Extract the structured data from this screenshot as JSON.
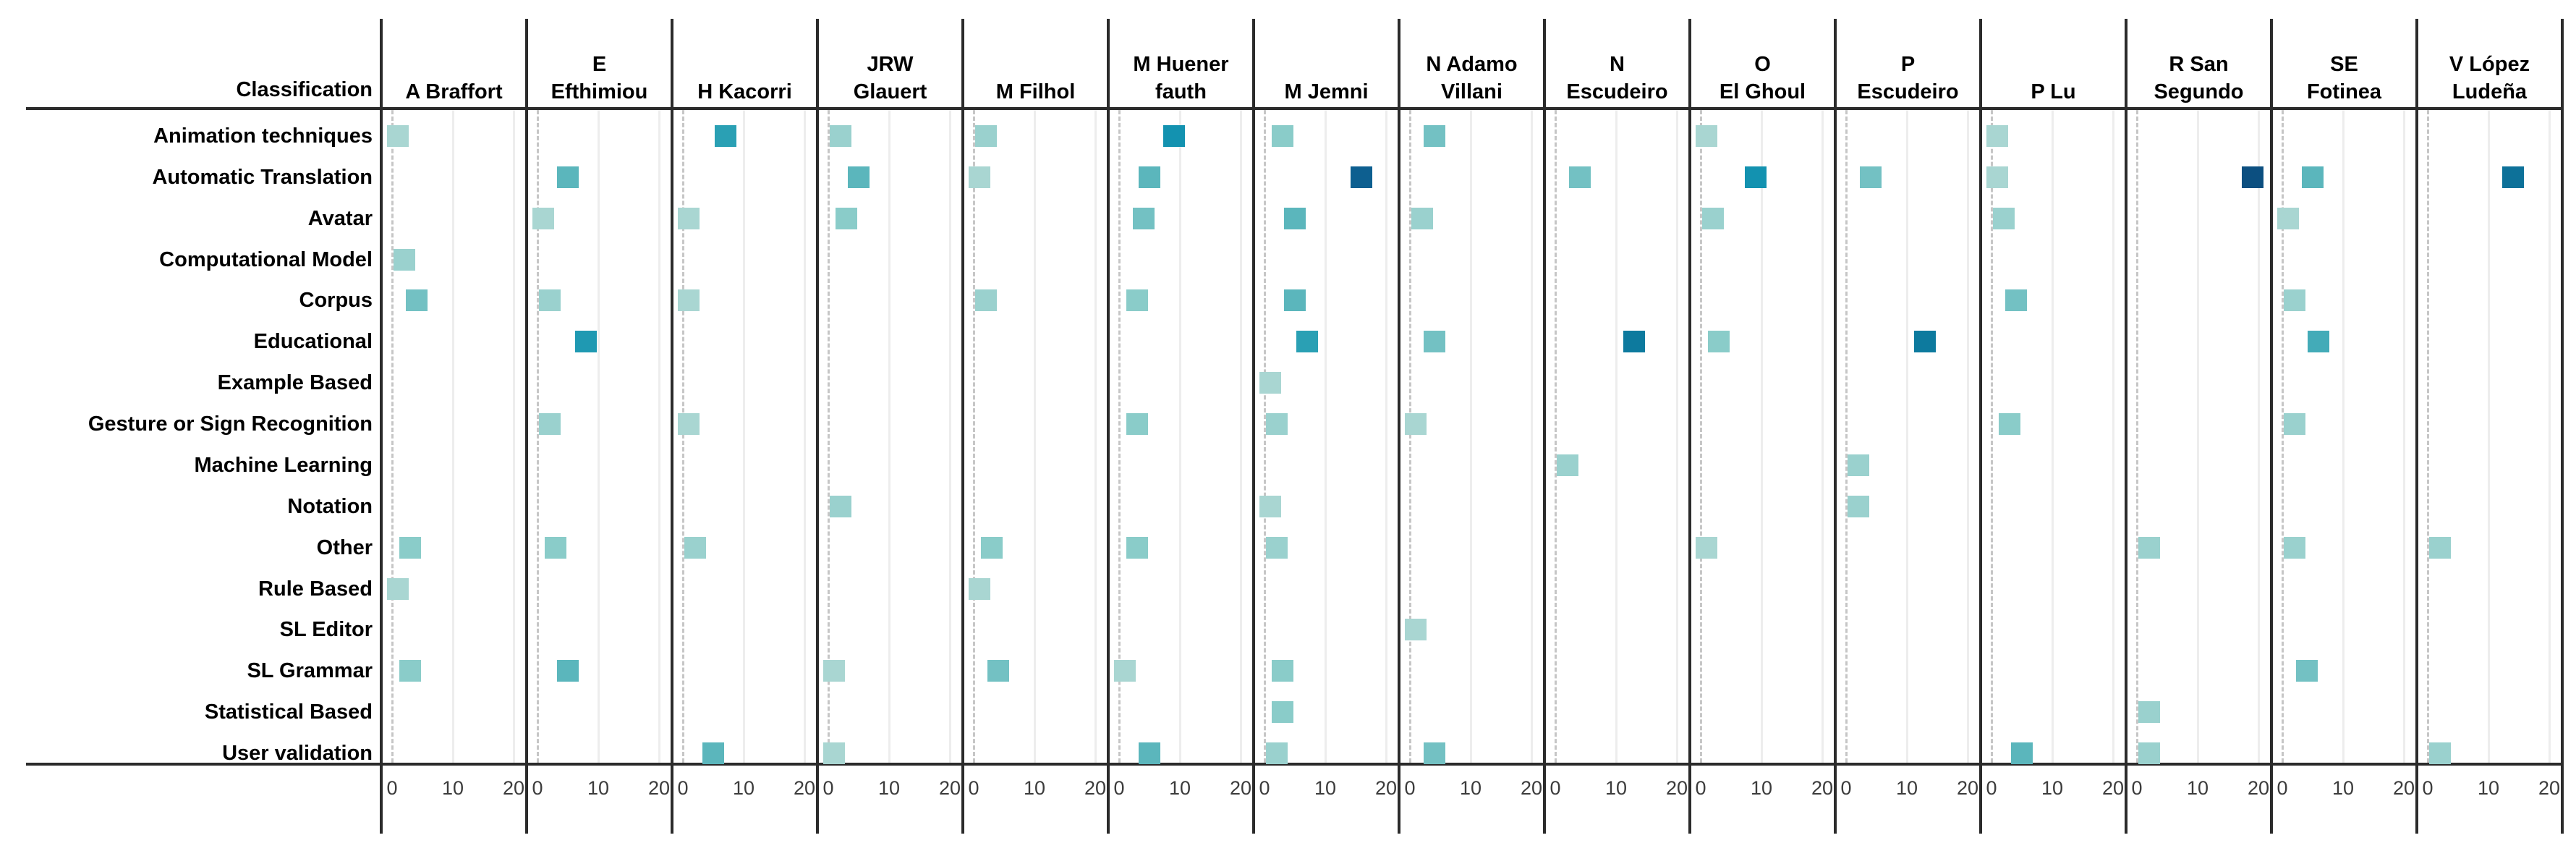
{
  "chart_data": {
    "type": "heatmap",
    "title": "Classification",
    "xlabel": "",
    "ylabel": "",
    "x_axis": {
      "ticks": [
        "0",
        "10",
        "20"
      ],
      "tick_values": [
        0,
        10,
        20
      ],
      "min": 0,
      "max": 22
    },
    "grid": true,
    "legend": "none",
    "rows": [
      "Animation techniques",
      "Automatic Translation",
      "Avatar",
      "Computational Model",
      "Corpus",
      "Educational",
      "Example Based",
      "Gesture or Sign Recognition",
      "Machine Learning",
      "Notation",
      "Other",
      "Rule Based",
      "SL Editor",
      "SL Grammar",
      "Statistical Based",
      "User validation"
    ],
    "columns": [
      [
        "A Braffort"
      ],
      [
        "E",
        "Efthimiou"
      ],
      [
        "H Kacorri"
      ],
      [
        "JRW",
        "Glauert"
      ],
      [
        "M Filhol"
      ],
      [
        "M Huener",
        "fauth"
      ],
      [
        "M Jemni"
      ],
      [
        "N  Adamo",
        "Villani"
      ],
      [
        "N",
        "Escudeiro"
      ],
      [
        "O",
        "El Ghoul"
      ],
      [
        "P",
        "Escudeiro"
      ],
      [
        "P Lu"
      ],
      [
        "R San",
        "Segundo"
      ],
      [
        "SE",
        "Fotinea"
      ],
      [
        "V López",
        "Ludeña"
      ]
    ],
    "cells_format": "[column_index, row_index, value]",
    "cells": [
      [
        0,
        0,
        1
      ],
      [
        0,
        3,
        2
      ],
      [
        0,
        4,
        4
      ],
      [
        0,
        10,
        3
      ],
      [
        0,
        11,
        1
      ],
      [
        0,
        13,
        3
      ],
      [
        1,
        1,
        5
      ],
      [
        1,
        2,
        1
      ],
      [
        1,
        4,
        2
      ],
      [
        1,
        5,
        8
      ],
      [
        1,
        7,
        2
      ],
      [
        1,
        10,
        3
      ],
      [
        1,
        13,
        5
      ],
      [
        2,
        0,
        7
      ],
      [
        2,
        2,
        1
      ],
      [
        2,
        4,
        1
      ],
      [
        2,
        7,
        1
      ],
      [
        2,
        10,
        2
      ],
      [
        2,
        15,
        5
      ],
      [
        3,
        0,
        2
      ],
      [
        3,
        1,
        5
      ],
      [
        3,
        2,
        3
      ],
      [
        3,
        9,
        2
      ],
      [
        3,
        13,
        1
      ],
      [
        3,
        15,
        1
      ],
      [
        4,
        0,
        2
      ],
      [
        4,
        1,
        1
      ],
      [
        4,
        4,
        2
      ],
      [
        4,
        10,
        3
      ],
      [
        4,
        11,
        1
      ],
      [
        4,
        13,
        4
      ],
      [
        5,
        0,
        9
      ],
      [
        5,
        1,
        5
      ],
      [
        5,
        2,
        4
      ],
      [
        5,
        4,
        3
      ],
      [
        5,
        7,
        3
      ],
      [
        5,
        10,
        3
      ],
      [
        5,
        13,
        1
      ],
      [
        5,
        15,
        5
      ],
      [
        6,
        0,
        3
      ],
      [
        6,
        1,
        16
      ],
      [
        6,
        2,
        5
      ],
      [
        6,
        4,
        5
      ],
      [
        6,
        5,
        7
      ],
      [
        6,
        6,
        1
      ],
      [
        6,
        7,
        2
      ],
      [
        6,
        9,
        1
      ],
      [
        6,
        10,
        2
      ],
      [
        6,
        13,
        3
      ],
      [
        6,
        14,
        3
      ],
      [
        6,
        15,
        2
      ],
      [
        7,
        0,
        4
      ],
      [
        7,
        2,
        2
      ],
      [
        7,
        5,
        4
      ],
      [
        7,
        7,
        1
      ],
      [
        7,
        12,
        1
      ],
      [
        7,
        15,
        4
      ],
      [
        8,
        1,
        4
      ],
      [
        8,
        5,
        13
      ],
      [
        8,
        8,
        2
      ],
      [
        9,
        0,
        1
      ],
      [
        9,
        1,
        9
      ],
      [
        9,
        2,
        2
      ],
      [
        9,
        5,
        3
      ],
      [
        9,
        10,
        1
      ],
      [
        10,
        1,
        4
      ],
      [
        10,
        5,
        13
      ],
      [
        10,
        8,
        2
      ],
      [
        10,
        9,
        2
      ],
      [
        11,
        0,
        1
      ],
      [
        11,
        1,
        1
      ],
      [
        11,
        2,
        2
      ],
      [
        11,
        4,
        4
      ],
      [
        11,
        7,
        3
      ],
      [
        11,
        15,
        5
      ],
      [
        12,
        1,
        19
      ],
      [
        12,
        10,
        2
      ],
      [
        12,
        14,
        2
      ],
      [
        12,
        15,
        2
      ],
      [
        13,
        1,
        5
      ],
      [
        13,
        2,
        1
      ],
      [
        13,
        4,
        2
      ],
      [
        13,
        5,
        6
      ],
      [
        13,
        7,
        2
      ],
      [
        13,
        10,
        2
      ],
      [
        13,
        13,
        4
      ],
      [
        14,
        1,
        14
      ],
      [
        14,
        10,
        2
      ],
      [
        14,
        15,
        2
      ]
    ],
    "color_scale_stops": [
      [
        1,
        "#a9d6d2"
      ],
      [
        3,
        "#8accc9"
      ],
      [
        5,
        "#5bb6bc"
      ],
      [
        7,
        "#2aa0b4"
      ],
      [
        9,
        "#1392b0"
      ],
      [
        13,
        "#0d7a9e"
      ],
      [
        16,
        "#0d5f90"
      ],
      [
        20,
        "#0b4a7b"
      ]
    ]
  },
  "colors": {
    "background": "#ffffff",
    "dark_line": "#2b2b2b",
    "grid_light": "#ededed",
    "zero_dashed_line": "#c6c6c6",
    "label_text": "#000000",
    "tick_text": "#3c3c3c"
  }
}
